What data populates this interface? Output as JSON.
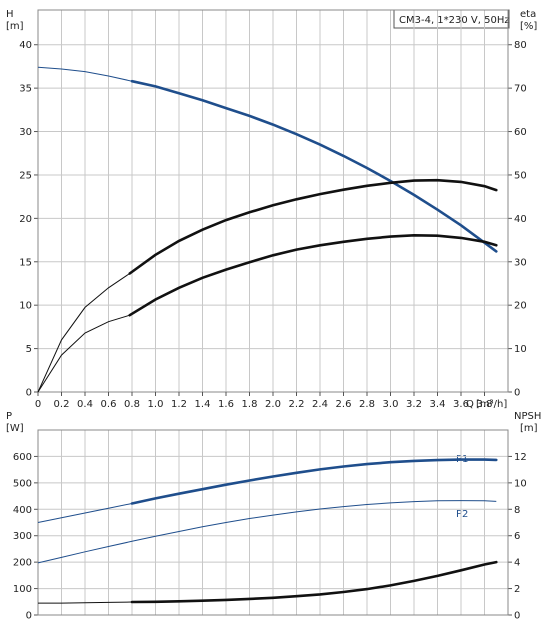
{
  "chart_data": [
    {
      "type": "line",
      "title": "CM3-4, 1*230 V, 50Hz",
      "xlabel": "Q",
      "xunit": "[m³/h]",
      "x_ticks": [
        "0",
        "0.2",
        "0.4",
        "0.6",
        "0.8",
        "1.0",
        "1.2",
        "1.4",
        "1.6",
        "1.8",
        "2.0",
        "2.2",
        "2.4",
        "2.6",
        "2.8",
        "3.0",
        "3.2",
        "3.4",
        "3.6",
        "3.8"
      ],
      "xlim": [
        0,
        4.0
      ],
      "y_left": {
        "label": "H",
        "unit": "[m]",
        "lim": [
          0,
          44
        ],
        "ticks": [
          "0",
          "5",
          "10",
          "15",
          "20",
          "25",
          "30",
          "35",
          "40"
        ]
      },
      "y_right": {
        "label": "eta",
        "unit": "[%]",
        "lim": [
          0,
          88
        ],
        "ticks": [
          "0",
          "10",
          "20",
          "30",
          "40",
          "50",
          "60",
          "70",
          "80"
        ]
      },
      "grid": true,
      "colors": {
        "head": "#1f4e8c",
        "eta": "#111111"
      },
      "series": [
        {
          "axis": "left",
          "color": "#1f4e8c",
          "x": [
            0,
            0.2,
            0.4,
            0.6,
            0.8,
            1.0,
            1.2,
            1.4,
            1.6,
            1.8,
            2.0,
            2.2,
            2.4,
            2.6,
            2.8,
            3.0,
            3.2,
            3.4,
            3.6,
            3.8,
            3.9
          ],
          "y": [
            37.4,
            37.2,
            36.9,
            36.4,
            35.8,
            35.2,
            34.4,
            33.6,
            32.7,
            31.8,
            30.8,
            29.7,
            28.5,
            27.2,
            25.8,
            24.3,
            22.7,
            21.0,
            19.2,
            17.2,
            16.2
          ],
          "highlight_from": 0.78
        },
        {
          "axis": "right",
          "color": "#111111",
          "x": [
            0,
            0.2,
            0.4,
            0.6,
            0.78,
            1.0,
            1.2,
            1.4,
            1.6,
            1.8,
            2.0,
            2.2,
            2.4,
            2.6,
            2.8,
            3.0,
            3.2,
            3.4,
            3.6,
            3.8,
            3.9
          ],
          "y": [
            0,
            12.0,
            19.5,
            24.0,
            27.3,
            31.6,
            34.8,
            37.4,
            39.6,
            41.4,
            43.0,
            44.4,
            45.6,
            46.6,
            47.5,
            48.2,
            48.7,
            48.8,
            48.4,
            47.4,
            46.5
          ],
          "highlight_from": 0.78
        },
        {
          "axis": "right",
          "color": "#111111",
          "x": [
            0,
            0.2,
            0.4,
            0.6,
            0.78,
            1.0,
            1.2,
            1.4,
            1.6,
            1.8,
            2.0,
            2.2,
            2.4,
            2.6,
            2.8,
            3.0,
            3.2,
            3.4,
            3.6,
            3.8,
            3.9
          ],
          "y": [
            0,
            8.5,
            13.6,
            16.2,
            17.7,
            21.3,
            24.0,
            26.3,
            28.2,
            29.9,
            31.5,
            32.8,
            33.8,
            34.6,
            35.3,
            35.8,
            36.1,
            36.0,
            35.5,
            34.6,
            33.8
          ],
          "highlight_from": 0.78
        }
      ]
    },
    {
      "type": "line",
      "y_left": {
        "label": "P",
        "unit": "[W]",
        "lim": [
          0,
          700
        ],
        "ticks": [
          "0",
          "100",
          "200",
          "300",
          "400",
          "500",
          "600"
        ]
      },
      "y_right": {
        "label": "NPSH",
        "unit": "[m]",
        "lim": [
          0,
          14
        ],
        "ticks": [
          "0",
          "2",
          "4",
          "6",
          "8",
          "10",
          "12"
        ]
      },
      "grid": true,
      "series": [
        {
          "name": "P1",
          "axis": "left",
          "color": "#1f4e8c",
          "x": [
            0,
            0.2,
            0.4,
            0.6,
            0.8,
            1.0,
            1.2,
            1.4,
            1.6,
            1.8,
            2.0,
            2.2,
            2.4,
            2.6,
            2.8,
            3.0,
            3.2,
            3.4,
            3.6,
            3.8,
            3.9
          ],
          "y": [
            350,
            368,
            386,
            404,
            422,
            441,
            459,
            476,
            493,
            509,
            524,
            538,
            551,
            562,
            571,
            578,
            583,
            586,
            588,
            588,
            587
          ],
          "highlight_from": 0.78
        },
        {
          "name": "P2",
          "axis": "left",
          "color": "#1f4e8c",
          "x": [
            0,
            0.2,
            0.4,
            0.6,
            0.8,
            1.0,
            1.2,
            1.4,
            1.6,
            1.8,
            2.0,
            2.2,
            2.4,
            2.6,
            2.8,
            3.0,
            3.2,
            3.4,
            3.6,
            3.8,
            3.9
          ],
          "y": [
            197,
            218,
            239,
            259,
            279,
            298,
            316,
            334,
            350,
            365,
            378,
            390,
            401,
            410,
            418,
            424,
            429,
            432,
            433,
            432,
            430
          ],
          "highlight_from": null
        },
        {
          "axis": "right",
          "color": "#111111",
          "x": [
            0,
            0.2,
            0.4,
            0.6,
            0.8,
            1.0,
            1.2,
            1.4,
            1.6,
            1.8,
            2.0,
            2.2,
            2.4,
            2.6,
            2.8,
            3.0,
            3.2,
            3.4,
            3.6,
            3.8,
            3.9
          ],
          "y": [
            0.9,
            0.9,
            0.92,
            0.95,
            0.98,
            1.0,
            1.04,
            1.08,
            1.14,
            1.22,
            1.3,
            1.42,
            1.56,
            1.74,
            1.96,
            2.24,
            2.58,
            2.96,
            3.38,
            3.82,
            4.0
          ],
          "highlight_from": 0.78
        }
      ]
    }
  ]
}
